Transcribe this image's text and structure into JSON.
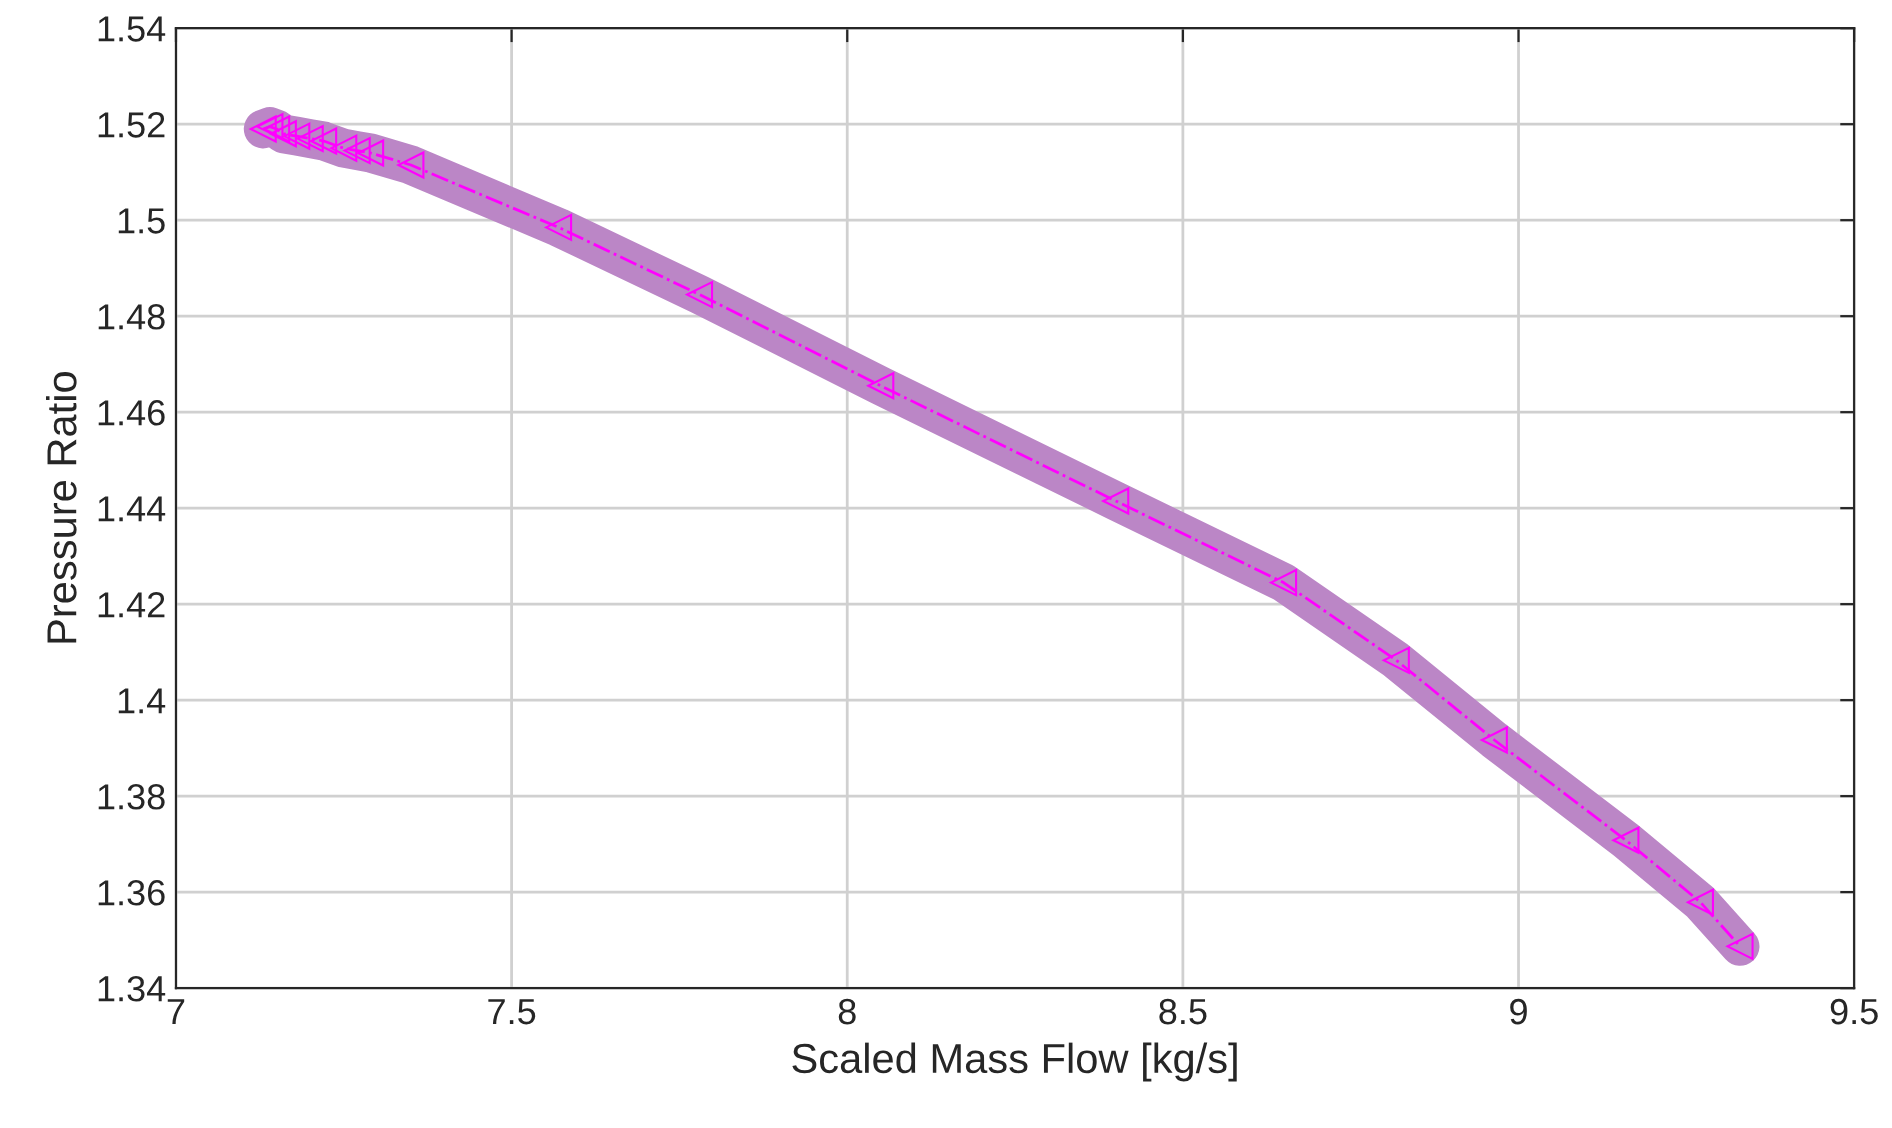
{
  "chart_data": {
    "type": "line",
    "xlabel": "Scaled Mass Flow [kg/s]",
    "ylabel": "Pressure Ratio",
    "xlim": [
      7,
      9.5
    ],
    "xticks": [
      7,
      7.5,
      8,
      8.5,
      9,
      9.5
    ],
    "ylim": [
      1.34,
      1.54
    ],
    "yticks": [
      1.34,
      1.36,
      1.38,
      1.4,
      1.42,
      1.44,
      1.46,
      1.48,
      1.5,
      1.52,
      1.54
    ],
    "grid": true,
    "x": [
      7.13,
      7.14,
      7.15,
      7.16,
      7.18,
      7.2,
      7.22,
      7.25,
      7.27,
      7.29,
      7.35,
      7.57,
      7.78,
      8.05,
      8.4,
      8.65,
      8.818,
      8.964,
      9.16,
      9.271,
      9.33
    ],
    "series": [
      {
        "color": "#bb86c6",
        "line_style": "solid",
        "marker": "none",
        "values": [
          1.519,
          1.5195,
          1.519,
          1.518,
          1.5175,
          1.517,
          1.5165,
          1.515,
          1.5145,
          1.514,
          1.5115,
          1.4985,
          1.4845,
          1.4655,
          1.4415,
          1.4245,
          1.4083,
          1.3917,
          1.3708,
          1.3579,
          1.3487
        ]
      },
      {
        "color": "#ff00ff",
        "line_style": "dashdot",
        "marker": "triangle",
        "values": [
          1.519,
          1.5195,
          1.519,
          1.518,
          1.5175,
          1.517,
          1.5165,
          1.515,
          1.5145,
          1.514,
          1.5115,
          1.4985,
          1.4845,
          1.4655,
          1.4415,
          1.4245,
          1.4083,
          1.3917,
          1.3708,
          1.3579,
          1.3487
        ]
      }
    ]
  }
}
